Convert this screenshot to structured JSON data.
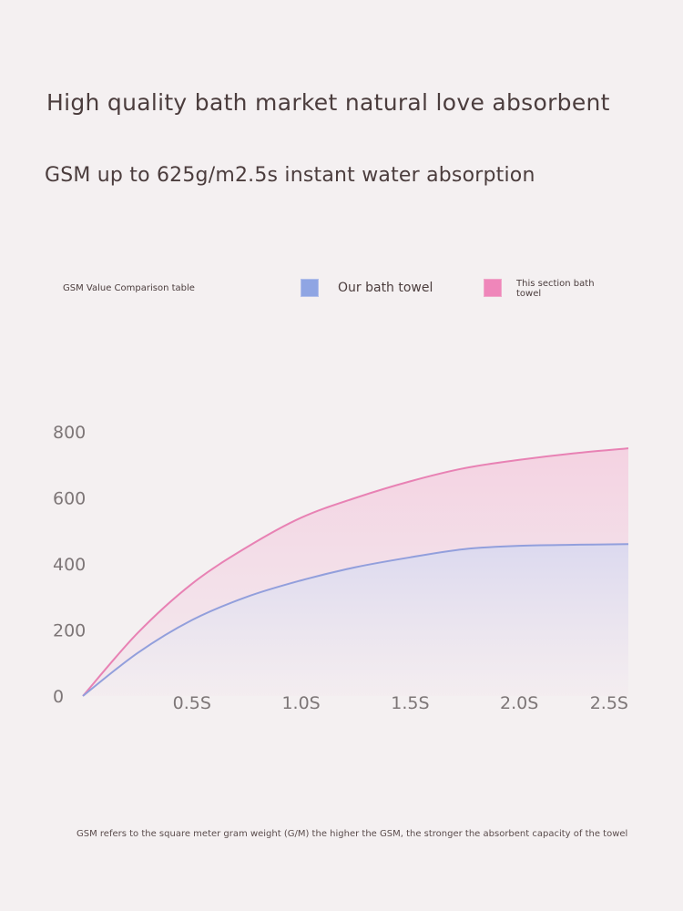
{
  "headline": "High quality bath market natural love absorbent",
  "subheadline": "GSM up to 625g/m2.5s instant water absorption",
  "legend": {
    "table_label": "GSM Value Comparison table",
    "ours_label": "Our bath towel",
    "other_label": "This section bath towel"
  },
  "footnote": "GSM refers to the square meter gram weight (G/M) the higher the GSM, the stronger the absorbent capacity of the towel",
  "chart_data": {
    "type": "area",
    "title": "",
    "xlabel": "",
    "ylabel": "",
    "xlim": [
      0,
      2.5
    ],
    "ylim": [
      0,
      800
    ],
    "x_ticks": [
      0.5,
      1.0,
      1.5,
      2.0,
      2.5
    ],
    "x_tick_labels": [
      "0.5S",
      "1.0S",
      "1.5S",
      "2.0S",
      "2.5S"
    ],
    "y_ticks": [
      0,
      200,
      400,
      600,
      800
    ],
    "y_tick_labels": [
      "0",
      "200",
      "400",
      "600",
      "800"
    ],
    "grid": false,
    "legend_position": "top",
    "x": [
      0,
      0.25,
      0.5,
      0.75,
      1.0,
      1.25,
      1.5,
      1.75,
      2.0,
      2.25,
      2.5
    ],
    "series": [
      {
        "name": "This section bath towel",
        "color": "#e882b4",
        "values": [
          0,
          190,
          340,
          450,
          540,
          600,
          650,
          690,
          715,
          735,
          750
        ]
      },
      {
        "name": "Our bath towel",
        "color": "#929fdc",
        "values": [
          0,
          130,
          230,
          300,
          350,
          390,
          420,
          445,
          455,
          458,
          460
        ]
      }
    ]
  }
}
